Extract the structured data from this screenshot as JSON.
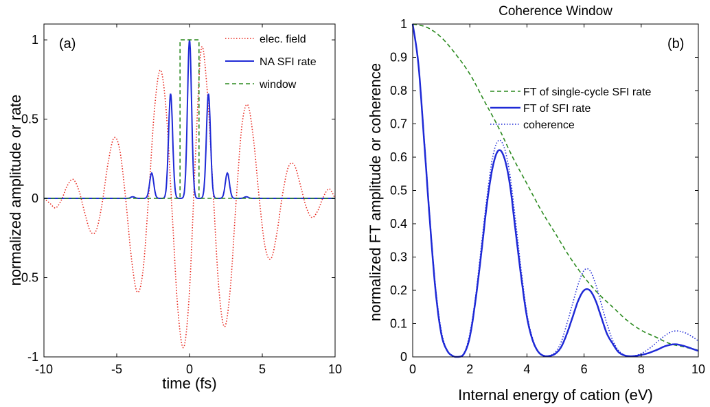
{
  "chart_data": [
    {
      "type": "line",
      "panel_label": "(a)",
      "xlabel": "time (fs)",
      "ylabel": "normalized amplitude or rate",
      "xlim": [
        -10,
        10
      ],
      "ylim": [
        -1,
        1.1
      ],
      "xticks": [
        "-10",
        "-5",
        "0",
        "5",
        "10"
      ],
      "yticks": [
        "-1",
        "-0.5",
        "0",
        "0.5",
        "1"
      ],
      "legend_position": "top-right",
      "grid": false,
      "series": [
        {
          "name": "elec. field",
          "color": "#e8261c",
          "style": "dotted",
          "x": [
            -10,
            -9.6,
            -9.2,
            -8.8,
            -8.4,
            -8,
            -7.6,
            -7.2,
            -6.8,
            -6.4,
            -6,
            -5.6,
            -5.2,
            -4.8,
            -4.4,
            -4,
            -3.6,
            -3.2,
            -2.8,
            -2.4,
            -2,
            -1.6,
            -1.2,
            -0.8,
            -0.4,
            0,
            0.4,
            0.8,
            1.2,
            1.6,
            2,
            2.4,
            2.8,
            3.2,
            3.6,
            4,
            4.4,
            4.8,
            5.2,
            5.6,
            6,
            6.4,
            6.8,
            7.2,
            7.6,
            8,
            8.4,
            8.8,
            9.2,
            9.6,
            10
          ],
          "y": [
            0,
            -0.03,
            -0.06,
            -0.01,
            0.08,
            0.12,
            0.05,
            -0.09,
            -0.21,
            -0.2,
            -0.03,
            0.22,
            0.38,
            0.31,
            0.01,
            -0.37,
            -0.59,
            -0.46,
            0.02,
            0.57,
            0.81,
            0.55,
            -0.08,
            -0.7,
            -0.94,
            -0.58,
            0.25,
            0.94,
            0.7,
            0.08,
            -0.55,
            -0.81,
            -0.57,
            -0.02,
            0.46,
            0.59,
            0.37,
            -0.01,
            -0.31,
            -0.38,
            -0.22,
            0.03,
            0.2,
            0.21,
            0.09,
            -0.05,
            -0.12,
            -0.08,
            0.01,
            0.06,
            0
          ]
        },
        {
          "name": "NA SFI rate",
          "color": "#1f2ad6",
          "style": "solid",
          "peaks": [
            {
              "center": -3.9,
              "height": 0.01
            },
            {
              "center": -2.6,
              "height": 0.16
            },
            {
              "center": -1.3,
              "height": 0.66
            },
            {
              "center": 0,
              "height": 1
            },
            {
              "center": 1.3,
              "height": 0.66
            },
            {
              "center": 2.6,
              "height": 0.16
            },
            {
              "center": 3.9,
              "height": 0.01
            }
          ],
          "baseline": 0
        },
        {
          "name": "window",
          "color": "#2b8a1f",
          "style": "dashed",
          "x": [
            -10,
            -0.65,
            -0.65,
            0.65,
            0.65,
            10
          ],
          "y": [
            0,
            0,
            1,
            1,
            0,
            0
          ]
        }
      ]
    },
    {
      "type": "line",
      "panel_label": "(b)",
      "title": "Coherence Window",
      "xlabel": "Internal energy of cation (eV)",
      "ylabel": "normalized FT amplitude or coherence",
      "xlim": [
        0,
        10
      ],
      "ylim": [
        0,
        1
      ],
      "xticks": [
        "0",
        "2",
        "4",
        "6",
        "8",
        "10"
      ],
      "yticks": [
        "0",
        "0.1",
        "0.2",
        "0.3",
        "0.4",
        "0.5",
        "0.6",
        "0.7",
        "0.8",
        "0.9",
        "1"
      ],
      "legend_position": "top-right",
      "grid": false,
      "series": [
        {
          "name": "FT of single-cycle SFI rate",
          "color": "#2b8a1f",
          "style": "dashed",
          "x": [
            0,
            0.5,
            1,
            1.5,
            2,
            2.5,
            3,
            3.5,
            4,
            4.5,
            5,
            5.5,
            6,
            6.5,
            7,
            7.5,
            8,
            8.5,
            9,
            9.5,
            10
          ],
          "y": [
            1,
            0.99,
            0.96,
            0.91,
            0.85,
            0.77,
            0.69,
            0.6,
            0.52,
            0.44,
            0.37,
            0.3,
            0.24,
            0.19,
            0.15,
            0.11,
            0.08,
            0.06,
            0.04,
            0.03,
            0.02
          ]
        },
        {
          "name": "FT of SFI rate",
          "color": "#1f2ad6",
          "style": "solid",
          "x": [
            0,
            0.2,
            0.4,
            0.6,
            0.8,
            1,
            1.2,
            1.4,
            1.6,
            1.8,
            2,
            2.2,
            2.4,
            2.6,
            2.8,
            3,
            3.2,
            3.4,
            3.6,
            3.8,
            4,
            4.2,
            4.4,
            4.6,
            4.8,
            5,
            5.2,
            5.4,
            5.6,
            5.8,
            6,
            6.2,
            6.4,
            6.6,
            6.8,
            7,
            7.2,
            7.4,
            7.6,
            7.8,
            8,
            8.2,
            8.4,
            8.6,
            8.8,
            9,
            9.2,
            9.4,
            9.6,
            9.8,
            10
          ],
          "y": [
            1,
            0.88,
            0.65,
            0.41,
            0.2,
            0.07,
            0.02,
            0.003,
            0,
            0.01,
            0.06,
            0.17,
            0.31,
            0.46,
            0.57,
            0.62,
            0.6,
            0.52,
            0.38,
            0.24,
            0.12,
            0.05,
            0.015,
            0.003,
            0.003,
            0.01,
            0.03,
            0.07,
            0.12,
            0.17,
            0.2,
            0.2,
            0.17,
            0.12,
            0.07,
            0.04,
            0.015,
            0.005,
            0.002,
            0.003,
            0.006,
            0.01,
            0.016,
            0.023,
            0.031,
            0.036,
            0.038,
            0.035,
            0.03,
            0.024,
            0.018
          ]
        },
        {
          "name": "coherence",
          "color": "#1f2ad6",
          "style": "dotted",
          "x": [
            0,
            0.2,
            0.4,
            0.6,
            0.8,
            1,
            1.2,
            1.4,
            1.6,
            1.8,
            2,
            2.2,
            2.4,
            2.6,
            2.8,
            3,
            3.2,
            3.4,
            3.6,
            3.8,
            4,
            4.2,
            4.4,
            4.6,
            4.8,
            5,
            5.2,
            5.4,
            5.6,
            5.8,
            6,
            6.2,
            6.4,
            6.6,
            6.8,
            7,
            7.2,
            7.4,
            7.6,
            7.8,
            8,
            8.2,
            8.4,
            8.6,
            8.8,
            9,
            9.2,
            9.4,
            9.6,
            9.8,
            10
          ],
          "y": [
            1,
            0.88,
            0.66,
            0.42,
            0.21,
            0.08,
            0.02,
            0.003,
            0,
            0.01,
            0.07,
            0.18,
            0.33,
            0.48,
            0.6,
            0.65,
            0.63,
            0.55,
            0.41,
            0.26,
            0.13,
            0.055,
            0.016,
            0.004,
            0.004,
            0.015,
            0.045,
            0.1,
            0.16,
            0.22,
            0.26,
            0.26,
            0.22,
            0.16,
            0.1,
            0.05,
            0.02,
            0.006,
            0.002,
            0.004,
            0.01,
            0.02,
            0.033,
            0.048,
            0.062,
            0.073,
            0.078,
            0.076,
            0.07,
            0.06,
            0.048
          ]
        }
      ]
    }
  ]
}
